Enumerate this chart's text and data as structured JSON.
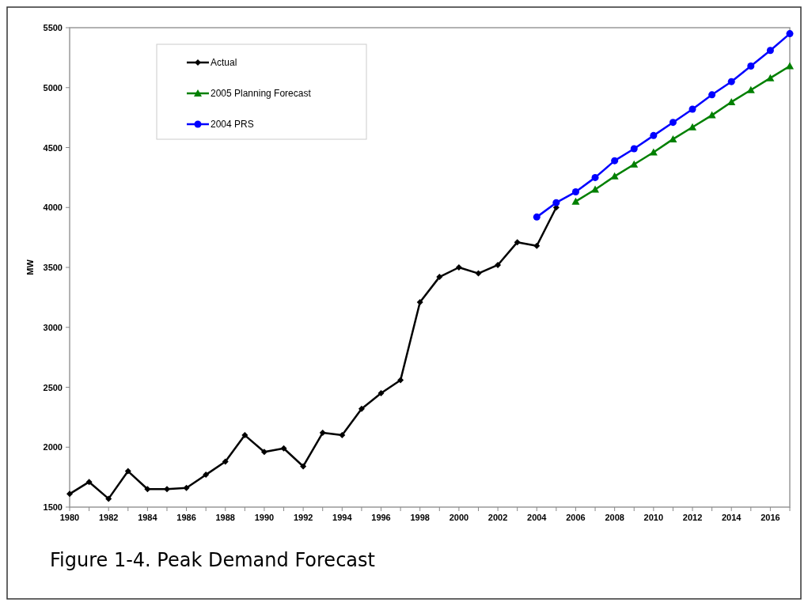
{
  "chart_data": {
    "type": "line",
    "title": "Figure 1-4.  Peak Demand Forecast",
    "ylabel": "MW",
    "xlim": [
      1980,
      2017
    ],
    "xticks": [
      1980,
      {
        "value": 1981,
        "label": null
      },
      1982,
      {
        "value": 1983,
        "label": null
      },
      1984,
      {
        "value": 1985,
        "label": null
      },
      1986,
      {
        "value": 1987,
        "label": null
      },
      1988,
      {
        "value": 1989,
        "label": null
      },
      1990,
      {
        "value": 1991,
        "label": null
      },
      1992,
      {
        "value": 1993,
        "label": null
      },
      1994,
      {
        "value": 1995,
        "label": null
      },
      1996,
      {
        "value": 1997,
        "label": null
      },
      1998,
      {
        "value": 1999,
        "label": null
      },
      2000,
      {
        "value": 2001,
        "label": null
      },
      2002,
      {
        "value": 2003,
        "label": null
      },
      2004,
      {
        "value": 2005,
        "label": null
      },
      2006,
      {
        "value": 2007,
        "label": null
      },
      2008,
      {
        "value": 2009,
        "label": null
      },
      2010,
      {
        "value": 2011,
        "label": null
      },
      2012,
      {
        "value": 2013,
        "label": null
      },
      2014,
      {
        "value": 2015,
        "label": null
      },
      2016,
      {
        "value": 2017,
        "label": null
      }
    ],
    "ylim": [
      1500,
      5500
    ],
    "yticks": [
      1500,
      2000,
      2500,
      3000,
      3500,
      4000,
      4500,
      5000,
      5500
    ],
    "grid": false,
    "legend": "top left",
    "line_style": "solid",
    "series": [
      {
        "name": "Actual",
        "color": "#000000",
        "marker": "diamond",
        "x": [
          1980,
          1981,
          1982,
          1983,
          1984,
          1985,
          1986,
          1987,
          1988,
          1989,
          1990,
          1991,
          1992,
          1993,
          1994,
          1995,
          1996,
          1997,
          1998,
          1999,
          2000,
          2001,
          2002,
          2003,
          2004,
          2005
        ],
        "values": [
          1610,
          1710,
          1570,
          1800,
          1650,
          1650,
          1660,
          1770,
          1880,
          2100,
          1960,
          1990,
          1840,
          2120,
          2100,
          2320,
          2450,
          2560,
          3210,
          3420,
          3500,
          3450,
          3520,
          3710,
          3680,
          4000
        ]
      },
      {
        "name": "2005 Planning Forecast",
        "color": "#008000",
        "marker": "triangle",
        "x": [
          2006,
          2007,
          2008,
          2009,
          2010,
          2011,
          2012,
          2013,
          2014,
          2015,
          2016,
          2017
        ],
        "values": [
          4050,
          4150,
          4260,
          4360,
          4460,
          4570,
          4670,
          4770,
          4880,
          4980,
          5080,
          5180
        ]
      },
      {
        "name": "2004 PRS",
        "color": "#0000ff",
        "marker": "circle",
        "x": [
          2004,
          2005,
          2006,
          2007,
          2008,
          2009,
          2010,
          2011,
          2012,
          2013,
          2014,
          2015,
          2016,
          2017
        ],
        "values": [
          3920,
          4040,
          4130,
          4250,
          4390,
          4490,
          4600,
          4710,
          4820,
          4940,
          5050,
          5180,
          5310,
          5450
        ]
      }
    ]
  }
}
